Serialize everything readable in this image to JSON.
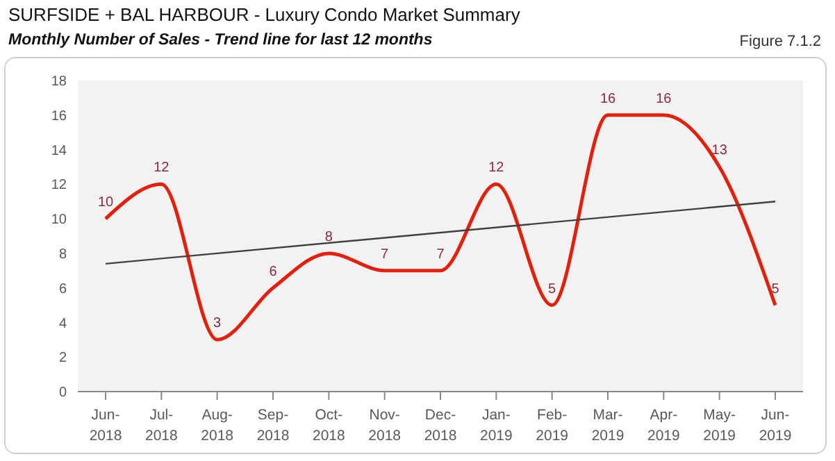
{
  "chart_data": {
    "type": "line",
    "title": "SURFSIDE + BAL HARBOUR - Luxury Condo Market Summary",
    "subtitle": "Monthly Number of Sales - Trend line for last 12 months",
    "annotations": [
      "Figure 7.1.2"
    ],
    "categories": [
      "Jun-2018",
      "Jul-2018",
      "Aug-2018",
      "Sep-2018",
      "Oct-2018",
      "Nov-2018",
      "Dec-2018",
      "Jan-2019",
      "Feb-2019",
      "Mar-2019",
      "Apr-2019",
      "May-2019",
      "Jun-2019"
    ],
    "series": [
      {
        "color": "#e3200b",
        "values": [
          10,
          12,
          3,
          6,
          8,
          7,
          7,
          12,
          5,
          16,
          16,
          13,
          5
        ],
        "value_labels": [
          "10",
          "12",
          "3",
          "6",
          "8",
          "7",
          "7",
          "12",
          "5",
          "16",
          "16",
          "13",
          "5"
        ]
      },
      {
        "color": "#404040",
        "values": [
          7.4,
          null,
          null,
          null,
          null,
          null,
          null,
          null,
          null,
          null,
          null,
          null,
          11.0
        ]
      }
    ],
    "ylim": [
      0,
      18
    ],
    "yticks": [
      0,
      2,
      4,
      6,
      8,
      10,
      12,
      14,
      16,
      18
    ]
  }
}
